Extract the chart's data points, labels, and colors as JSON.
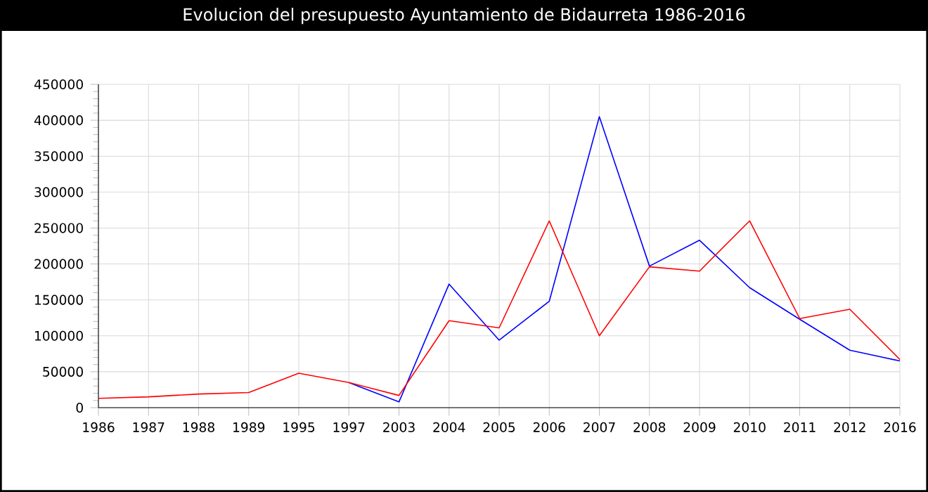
{
  "chart_data": {
    "type": "line",
    "title": "Evolucion del presupuesto Ayuntamiento de Bidaurreta 1986-2016",
    "categories": [
      "1986",
      "1987",
      "1988",
      "1989",
      "1995",
      "1997",
      "2003",
      "2004",
      "2005",
      "2006",
      "2007",
      "2008",
      "2009",
      "2010",
      "2011",
      "2012",
      "2016"
    ],
    "series": [
      {
        "color": "#0000ff",
        "values": [
          null,
          null,
          null,
          null,
          null,
          35000,
          8000,
          172000,
          94000,
          148000,
          405000,
          197000,
          233000,
          167000,
          123000,
          80000,
          65000
        ]
      },
      {
        "color": "#ff0000",
        "values": [
          13000,
          15000,
          19000,
          21000,
          48000,
          35000,
          17000,
          121000,
          111000,
          260000,
          100000,
          196000,
          190000,
          260000,
          124000,
          137000,
          67000
        ]
      }
    ],
    "ylim": [
      0,
      450000
    ],
    "yticks": [
      0,
      50000,
      100000,
      150000,
      200000,
      250000,
      300000,
      350000,
      400000,
      450000
    ],
    "grid": true,
    "marker": "none",
    "line_style": "solid"
  }
}
